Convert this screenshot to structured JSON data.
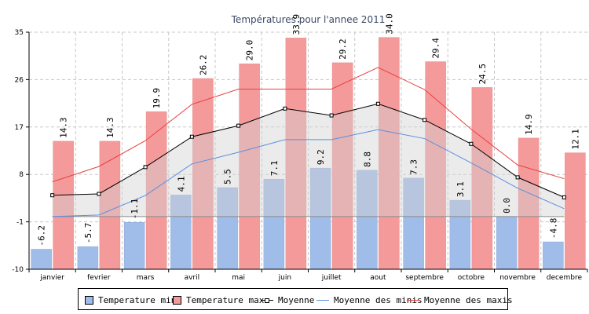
{
  "chart_data": {
    "type": "bar",
    "title": "Températures pour l'annee 2011",
    "categories": [
      "janvier",
      "fevrier",
      "mars",
      "avril",
      "mai",
      "juin",
      "juillet",
      "aout",
      "septembre",
      "octobre",
      "novembre",
      "decembre"
    ],
    "series": [
      {
        "name": "Temperature min",
        "type": "bar",
        "color": "#a0bce8",
        "values": [
          -6.2,
          -5.7,
          -1.1,
          4.1,
          5.5,
          7.1,
          9.2,
          8.8,
          7.3,
          3.1,
          0.0,
          -4.8
        ]
      },
      {
        "name": "Temperature max",
        "type": "bar",
        "color": "#f59a9a",
        "values": [
          14.3,
          14.3,
          19.9,
          26.2,
          29.0,
          33.9,
          29.2,
          34.0,
          29.4,
          24.5,
          14.9,
          12.1
        ]
      },
      {
        "name": "Moyenne",
        "type": "line",
        "color": "#000000",
        "marker": "square",
        "values": [
          4.05,
          4.3,
          9.4,
          15.15,
          17.25,
          20.5,
          19.2,
          21.4,
          18.35,
          13.8,
          7.45,
          3.65
        ]
      },
      {
        "name": "Moyenne des minis",
        "type": "line",
        "color": "#5a8fe0",
        "values": [
          0.0,
          0.3,
          4.0,
          10.0,
          12.2,
          14.6,
          14.6,
          16.5,
          14.8,
          10.2,
          5.4,
          1.5
        ]
      },
      {
        "name": "Moyenne des maxis",
        "type": "line",
        "color": "#e84040",
        "values": [
          6.6,
          9.5,
          14.4,
          21.3,
          24.2,
          24.2,
          24.2,
          28.3,
          24.1,
          16.6,
          9.8,
          7.2
        ]
      }
    ],
    "yticks": [
      -10,
      -1,
      8,
      17,
      26,
      35
    ],
    "ylim": [
      -10,
      35
    ],
    "grid": true,
    "legend_position": "bottom"
  }
}
